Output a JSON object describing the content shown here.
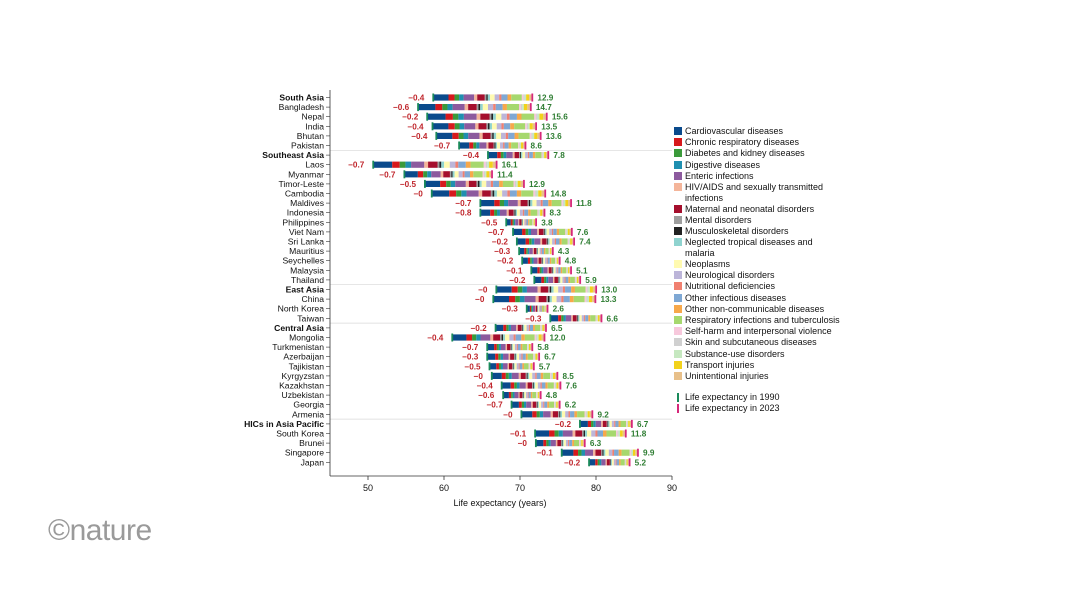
{
  "chart_data": {
    "type": "bar",
    "orientation": "horizontal-floating-stacked",
    "xlabel": "Life expectancy (years)",
    "xlim": [
      45,
      90
    ],
    "xticks": [
      50,
      60,
      70,
      80,
      90
    ],
    "categories": [
      {
        "name": "Cardiovascular diseases",
        "color": "#0a4a8c"
      },
      {
        "name": "Chronic respiratory diseases",
        "color": "#d7191c"
      },
      {
        "name": "Diabetes and kidney diseases",
        "color": "#3a9a3a"
      },
      {
        "name": "Digestive diseases",
        "color": "#1f8fb0"
      },
      {
        "name": "Enteric infections",
        "color": "#8c5a9e"
      },
      {
        "name": "HIV/AIDS and sexually transmitted infections",
        "color": "#f4b59a"
      },
      {
        "name": "Maternal and neonatal disorders",
        "color": "#a50f2d"
      },
      {
        "name": "Mental disorders",
        "color": "#9e9e9e"
      },
      {
        "name": "Musculoskeletal disorders",
        "color": "#222222"
      },
      {
        "name": "Neglected tropical diseases and malaria",
        "color": "#8fd3cf"
      },
      {
        "name": "Neoplasms",
        "color": "#fffab0"
      },
      {
        "name": "Neurological disorders",
        "color": "#bcb5d9"
      },
      {
        "name": "Nutritional deficiencies",
        "color": "#f08070"
      },
      {
        "name": "Other infectious diseases",
        "color": "#7fa8d4"
      },
      {
        "name": "Other non-communicable diseases",
        "color": "#f7a84a"
      },
      {
        "name": "Respiratory infections and tuberculosis",
        "color": "#a6d86e"
      },
      {
        "name": "Self-harm and interpersonal violence",
        "color": "#f7c8dc"
      },
      {
        "name": "Skin and subcutaneous diseases",
        "color": "#d0d0d0"
      },
      {
        "name": "Substance-use disorders",
        "color": "#c6e8c0"
      },
      {
        "name": "Transport injuries",
        "color": "#f2d21b"
      },
      {
        "name": "Unintentional injuries",
        "color": "#e8c08a"
      }
    ],
    "legend_le": [
      {
        "name": "Life expectancy in 1990",
        "color": "#1a8a5a"
      },
      {
        "name": "Life expectancy in 2023",
        "color": "#d6287a"
      }
    ],
    "rows": [
      {
        "name": "South Asia",
        "bold": true,
        "le1990": 58.6,
        "le2023": 71.5,
        "neg": "−0.4",
        "pos": "12.9"
      },
      {
        "name": "Bangladesh",
        "le1990": 56.6,
        "le2023": 71.3,
        "neg": "−0.6",
        "pos": "14.7"
      },
      {
        "name": "Nepal",
        "le1990": 57.8,
        "le2023": 73.4,
        "neg": "−0.2",
        "pos": "15.6"
      },
      {
        "name": "India",
        "le1990": 58.5,
        "le2023": 72.0,
        "neg": "−0.4",
        "pos": "13.5"
      },
      {
        "name": "Bhutan",
        "le1990": 59.0,
        "le2023": 72.6,
        "neg": "−0.4",
        "pos": "13.6"
      },
      {
        "name": "Pakistan",
        "le1990": 62.0,
        "le2023": 70.6,
        "neg": "−0.7",
        "pos": "8.6"
      },
      {
        "name": "Southeast Asia",
        "bold": true,
        "le1990": 65.8,
        "le2023": 73.6,
        "neg": "−0.4",
        "pos": "7.8"
      },
      {
        "name": "Laos",
        "le1990": 50.7,
        "le2023": 66.8,
        "neg": "−0.7",
        "pos": "16.1"
      },
      {
        "name": "Myanmar",
        "le1990": 54.8,
        "le2023": 66.2,
        "neg": "−0.7",
        "pos": "11.4"
      },
      {
        "name": "Timor-Leste",
        "le1990": 57.5,
        "le2023": 70.4,
        "neg": "−0.5",
        "pos": "12.9"
      },
      {
        "name": "Cambodia",
        "le1990": 58.4,
        "le2023": 73.2,
        "neg": "−0",
        "pos": "14.8"
      },
      {
        "name": "Maldives",
        "le1990": 64.8,
        "le2023": 76.6,
        "neg": "−0.7",
        "pos": "11.8"
      },
      {
        "name": "Indonesia",
        "le1990": 64.8,
        "le2023": 73.1,
        "neg": "−0.8",
        "pos": "8.3"
      },
      {
        "name": "Philippines",
        "le1990": 68.2,
        "le2023": 72.0,
        "neg": "−0.5",
        "pos": "3.8"
      },
      {
        "name": "Viet Nam",
        "le1990": 69.1,
        "le2023": 76.7,
        "neg": "−0.7",
        "pos": "7.6"
      },
      {
        "name": "Sri Lanka",
        "le1990": 69.6,
        "le2023": 77.0,
        "neg": "−0.2",
        "pos": "7.4"
      },
      {
        "name": "Mauritius",
        "le1990": 69.9,
        "le2023": 74.2,
        "neg": "−0.3",
        "pos": "4.3"
      },
      {
        "name": "Seychelles",
        "le1990": 70.3,
        "le2023": 75.1,
        "neg": "−0.2",
        "pos": "4.8"
      },
      {
        "name": "Malaysia",
        "le1990": 71.5,
        "le2023": 76.6,
        "neg": "−0.1",
        "pos": "5.1"
      },
      {
        "name": "Thailand",
        "le1990": 71.9,
        "le2023": 77.8,
        "neg": "−0.2",
        "pos": "5.9"
      },
      {
        "name": "East Asia",
        "bold": true,
        "le1990": 66.9,
        "le2023": 79.9,
        "neg": "−0",
        "pos": "13.0"
      },
      {
        "name": "China",
        "le1990": 66.5,
        "le2023": 79.8,
        "neg": "−0",
        "pos": "13.3"
      },
      {
        "name": "North Korea",
        "le1990": 70.9,
        "le2023": 73.5,
        "neg": "−0.3",
        "pos": "2.6"
      },
      {
        "name": "Taiwan",
        "le1990": 74.0,
        "le2023": 80.6,
        "neg": "−0.3",
        "pos": "6.6"
      },
      {
        "name": "Central Asia",
        "bold": true,
        "le1990": 66.8,
        "le2023": 73.3,
        "neg": "−0.2",
        "pos": "6.5"
      },
      {
        "name": "Mongolia",
        "le1990": 61.1,
        "le2023": 73.1,
        "neg": "−0.4",
        "pos": "12.0"
      },
      {
        "name": "Turkmenistan",
        "le1990": 65.7,
        "le2023": 71.5,
        "neg": "−0.7",
        "pos": "5.8"
      },
      {
        "name": "Azerbaijan",
        "le1990": 65.7,
        "le2023": 72.4,
        "neg": "−0.3",
        "pos": "6.7"
      },
      {
        "name": "Tajikistan",
        "le1990": 66.0,
        "le2023": 71.7,
        "neg": "−0.5",
        "pos": "5.7"
      },
      {
        "name": "Kyrgyzstan",
        "le1990": 66.3,
        "le2023": 74.8,
        "neg": "−0",
        "pos": "8.5"
      },
      {
        "name": "Kazakhstan",
        "le1990": 67.6,
        "le2023": 75.2,
        "neg": "−0.4",
        "pos": "7.6"
      },
      {
        "name": "Uzbekistan",
        "le1990": 67.8,
        "le2023": 72.6,
        "neg": "−0.6",
        "pos": "4.8"
      },
      {
        "name": "Georgia",
        "le1990": 68.9,
        "le2023": 75.1,
        "neg": "−0.7",
        "pos": "6.2"
      },
      {
        "name": "Armenia",
        "le1990": 70.2,
        "le2023": 79.4,
        "neg": "−0",
        "pos": "9.2"
      },
      {
        "name": "HICs in Asia Pacific",
        "bold": true,
        "le1990": 77.9,
        "le2023": 84.6,
        "neg": "−0.2",
        "pos": "6.7"
      },
      {
        "name": "South Korea",
        "le1990": 72.0,
        "le2023": 83.8,
        "neg": "−0.1",
        "pos": "11.8"
      },
      {
        "name": "Brunei",
        "le1990": 72.1,
        "le2023": 78.4,
        "neg": "−0",
        "pos": "6.3"
      },
      {
        "name": "Singapore",
        "le1990": 75.5,
        "le2023": 85.4,
        "neg": "−0.1",
        "pos": "9.9"
      },
      {
        "name": "Japan",
        "le1990": 79.1,
        "le2023": 84.3,
        "neg": "−0.2",
        "pos": "5.2"
      }
    ],
    "group_separators_after": [
      "Pakistan",
      "Thailand",
      "Taiwan",
      "Armenia"
    ]
  },
  "branding": {
    "logo_text": "©nature"
  }
}
